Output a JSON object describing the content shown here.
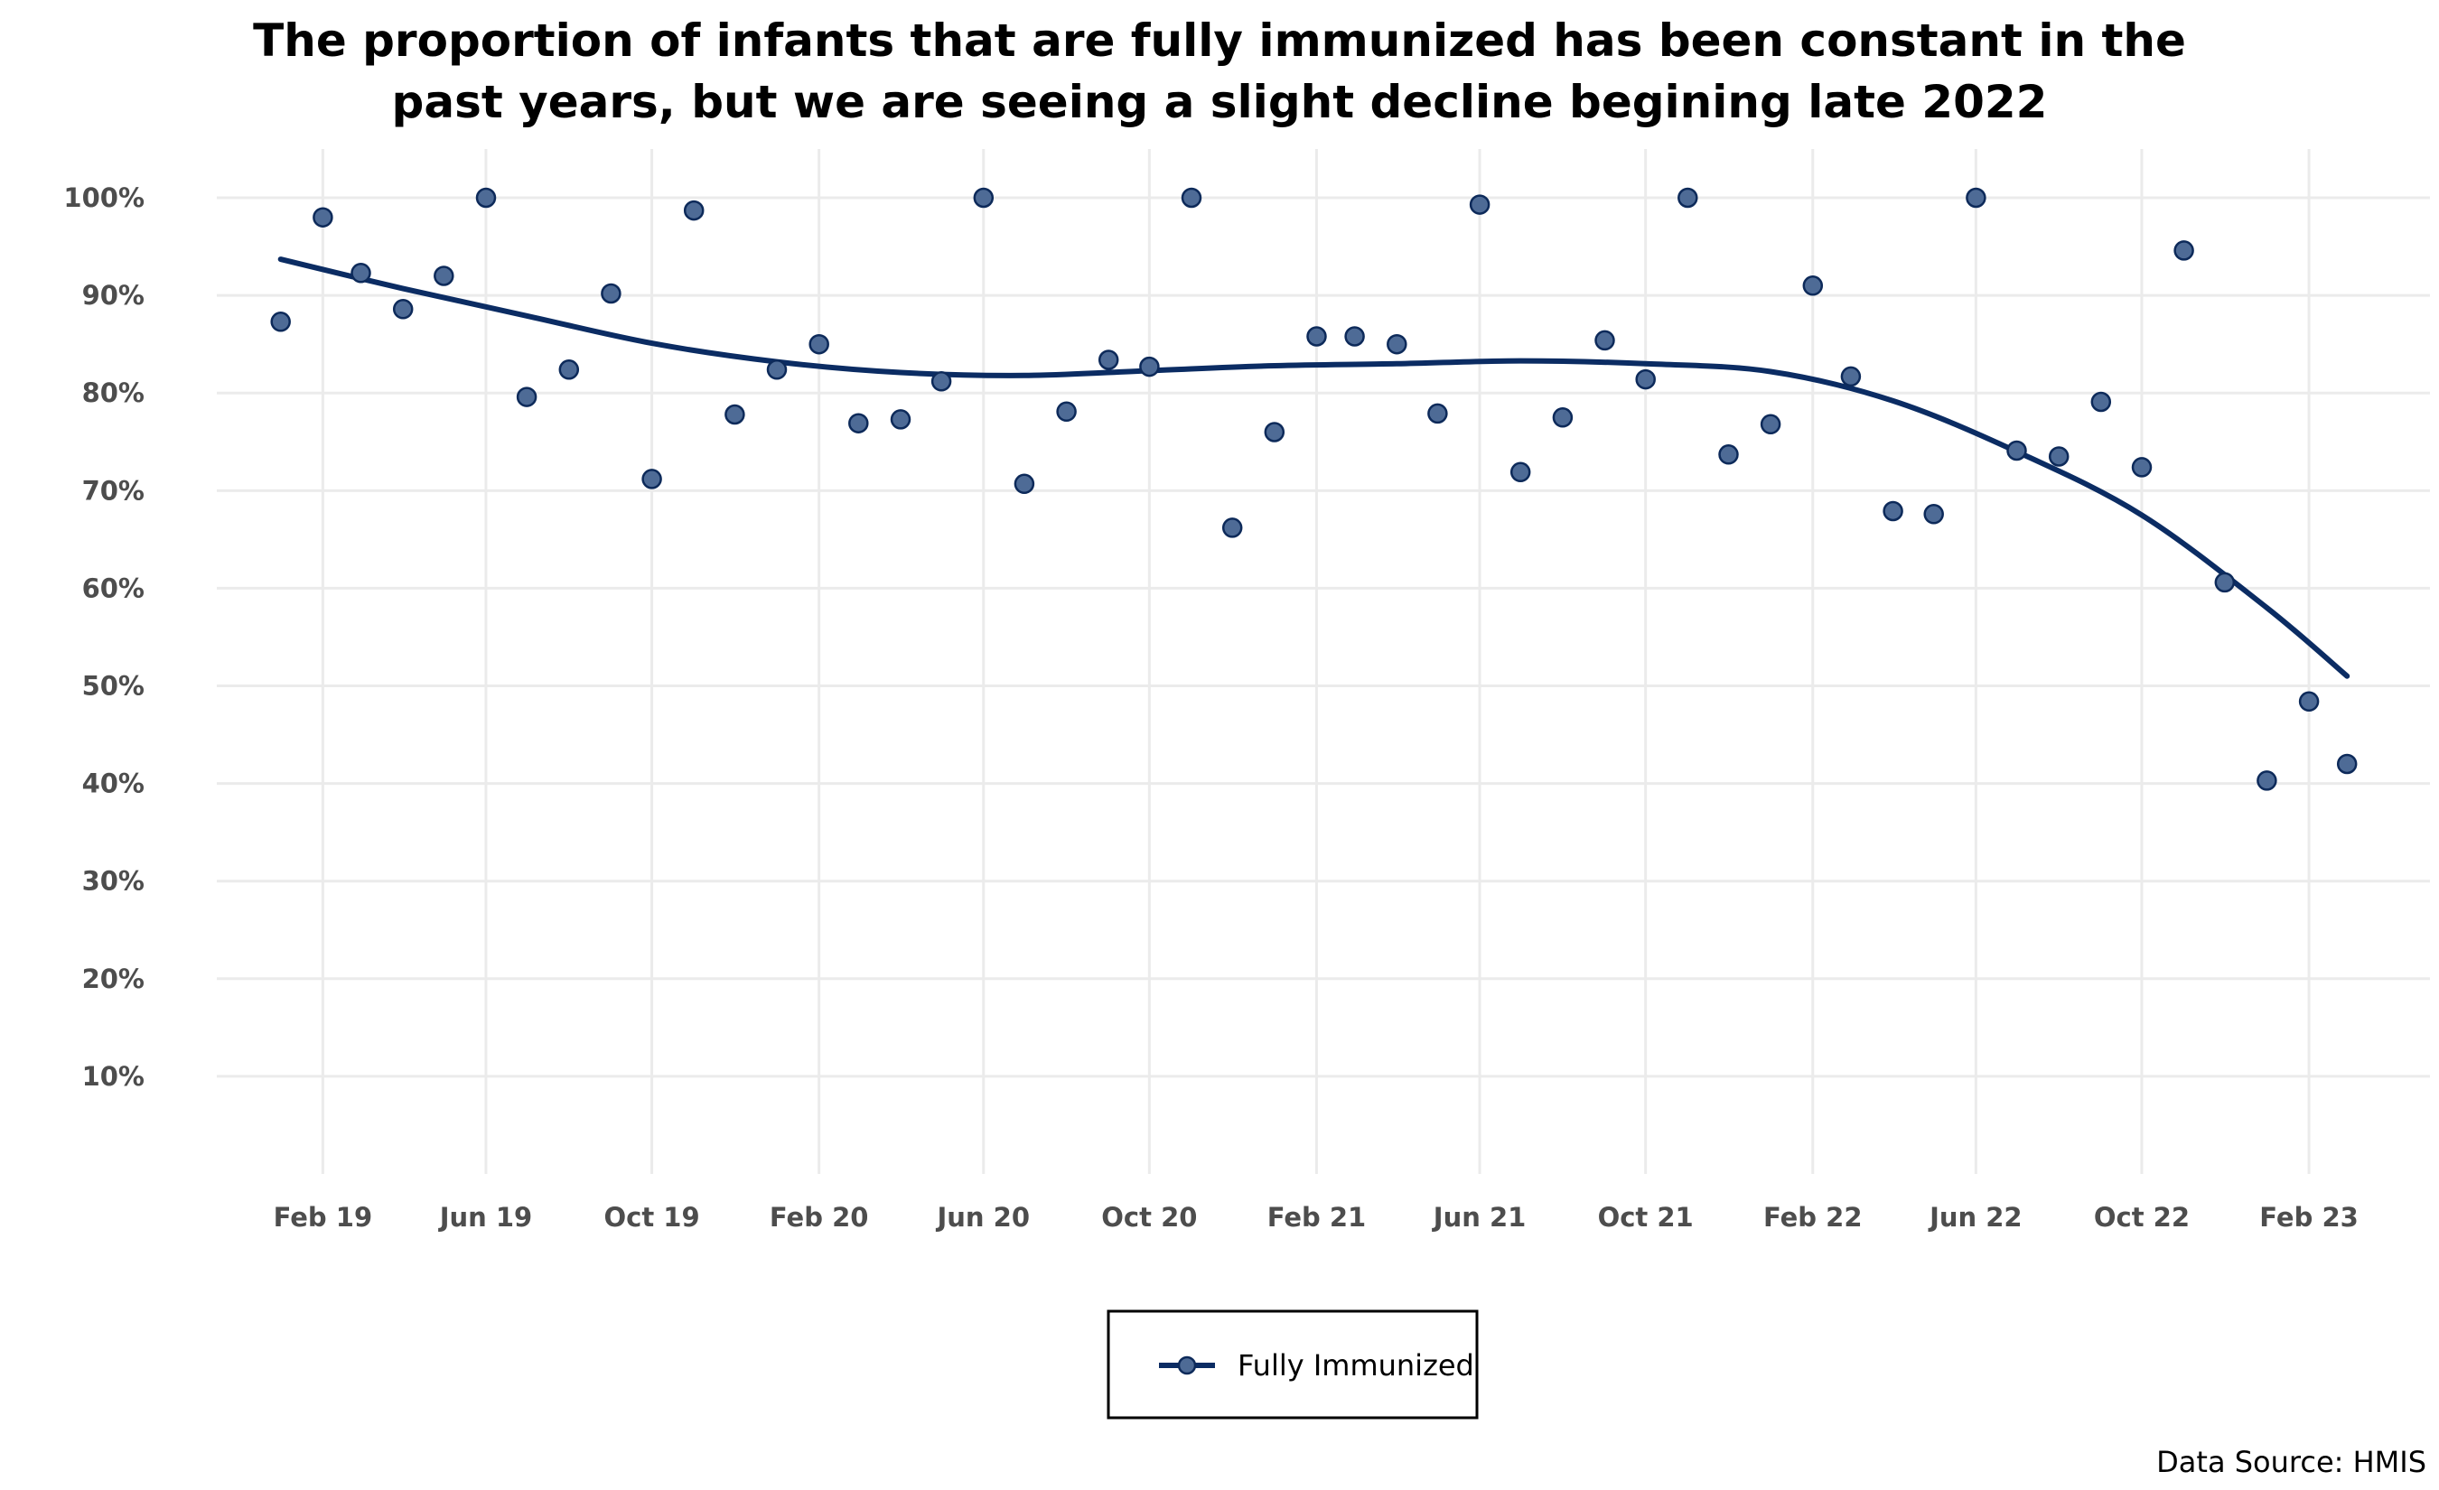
{
  "chart_data": {
    "type": "scatter",
    "title_lines": [
      "The proportion of infants that are fully immunized has been constant in the",
      "past years, but we are seeing a slight decline begining late 2022"
    ],
    "xlabel": "",
    "ylabel": "",
    "ylim": [
      0,
      105
    ],
    "xlim": [
      "2018-11-15",
      "2023-05-01"
    ],
    "y_ticks": [
      10,
      20,
      30,
      40,
      50,
      60,
      70,
      80,
      90,
      100
    ],
    "y_tick_labels": [
      "10%",
      "20%",
      "30%",
      "40%",
      "50%",
      "60%",
      "70%",
      "80%",
      "90%",
      "100%"
    ],
    "x_ticks": [
      "2019-02-01",
      "2019-06-01",
      "2019-10-01",
      "2020-02-01",
      "2020-06-01",
      "2020-10-01",
      "2021-02-01",
      "2021-06-01",
      "2021-10-01",
      "2022-02-01",
      "2022-06-01",
      "2022-10-01",
      "2023-02-01"
    ],
    "x_tick_labels": [
      "Feb 19",
      "Jun 19",
      "Oct 19",
      "Feb 20",
      "Jun 20",
      "Oct 20",
      "Feb 21",
      "Jun 21",
      "Oct 21",
      "Feb 22",
      "Jun 22",
      "Oct 22",
      "Feb 23"
    ],
    "grid": true,
    "legend_position": "bottom",
    "series": [
      {
        "name": "Fully Immunized",
        "color": "#4e6b96",
        "x": [
          "2019-01-01",
          "2019-02-01",
          "2019-03-01",
          "2019-04-01",
          "2019-05-01",
          "2019-06-01",
          "2019-07-01",
          "2019-08-01",
          "2019-09-01",
          "2019-10-01",
          "2019-11-01",
          "2019-12-01",
          "2020-01-01",
          "2020-02-01",
          "2020-03-01",
          "2020-04-01",
          "2020-05-01",
          "2020-06-01",
          "2020-07-01",
          "2020-08-01",
          "2020-09-01",
          "2020-10-01",
          "2020-11-01",
          "2020-12-01",
          "2021-01-01",
          "2021-02-01",
          "2021-03-01",
          "2021-04-01",
          "2021-05-01",
          "2021-06-01",
          "2021-07-01",
          "2021-08-01",
          "2021-09-01",
          "2021-10-01",
          "2021-11-01",
          "2021-12-01",
          "2022-01-01",
          "2022-02-01",
          "2022-03-01",
          "2022-04-01",
          "2022-05-01",
          "2022-06-01",
          "2022-07-01",
          "2022-08-01",
          "2022-09-01",
          "2022-10-01",
          "2022-11-01",
          "2022-12-01",
          "2023-01-01",
          "2023-02-01",
          "2023-03-01"
        ],
        "values": [
          87.3,
          98.0,
          92.3,
          88.6,
          92.0,
          100.0,
          79.6,
          82.4,
          90.2,
          71.2,
          98.7,
          77.8,
          82.4,
          85.0,
          76.9,
          77.3,
          81.2,
          100.0,
          70.7,
          78.1,
          83.4,
          82.7,
          100.0,
          66.2,
          76.0,
          85.8,
          85.8,
          85.0,
          77.9,
          99.3,
          71.9,
          77.5,
          85.4,
          81.4,
          100.0,
          73.7,
          76.8,
          91.0,
          81.7,
          67.9,
          67.6,
          100.0,
          74.1,
          73.5,
          79.1,
          72.4,
          94.6,
          60.6,
          40.3,
          48.4,
          42.0
        ]
      }
    ],
    "trend": {
      "name": "Fully Immunized",
      "color": "#0b2c63",
      "x": [
        "2019-01-01",
        "2019-04-01",
        "2019-07-01",
        "2019-10-01",
        "2020-01-01",
        "2020-04-01",
        "2020-07-01",
        "2020-10-01",
        "2021-01-01",
        "2021-04-01",
        "2021-07-01",
        "2021-10-01",
        "2022-01-01",
        "2022-04-01",
        "2022-07-01",
        "2022-10-01",
        "2023-01-01",
        "2023-03-01"
      ],
      "values": [
        93.7,
        90.7,
        87.9,
        85.1,
        83.2,
        82.1,
        81.8,
        82.3,
        82.8,
        83.0,
        83.3,
        83.0,
        82.2,
        79.2,
        74.0,
        67.5,
        58.0,
        51.0
      ]
    },
    "caption": "Data Source: HMIS"
  }
}
